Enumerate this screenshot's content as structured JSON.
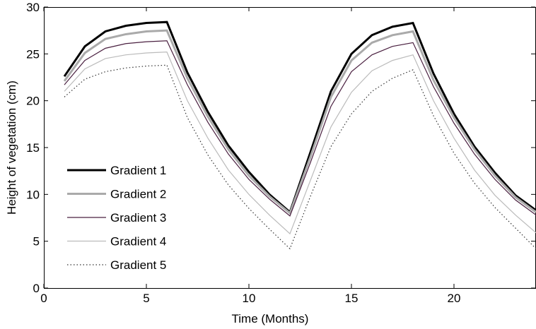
{
  "chart_data": {
    "type": "line",
    "xlabel": "Time (Months)",
    "ylabel": "Height of vegetation (cm)",
    "xlim": [
      0,
      24
    ],
    "ylim": [
      0,
      30
    ],
    "xticks": [
      0,
      5,
      10,
      15,
      20
    ],
    "yticks": [
      0,
      5,
      10,
      15,
      20,
      25,
      30
    ],
    "grid": false,
    "legend_position": "left",
    "x": [
      1,
      2,
      3,
      4,
      5,
      6,
      7,
      8,
      9,
      10,
      11,
      12,
      13,
      14,
      15,
      16,
      17,
      18,
      19,
      20,
      21,
      22,
      23,
      24
    ],
    "series": [
      {
        "name": "Gradient 1",
        "color": "#000000",
        "style": "thick-solid",
        "values": [
          22.6,
          25.8,
          27.4,
          28.0,
          28.3,
          28.4,
          23.0,
          18.8,
          15.2,
          12.4,
          10.0,
          8.1,
          14.5,
          21.0,
          25.0,
          27.0,
          27.9,
          28.3,
          22.9,
          18.6,
          15.1,
          12.3,
          9.9,
          8.3
        ]
      },
      {
        "name": "Gradient 2",
        "color": "#aaaaaa",
        "style": "thick-solid",
        "values": [
          22.1,
          25.1,
          26.6,
          27.1,
          27.4,
          27.5,
          22.4,
          18.3,
          14.8,
          12.0,
          9.8,
          8.0,
          14.0,
          20.4,
          24.3,
          26.2,
          27.0,
          27.4,
          22.2,
          18.2,
          14.8,
          12.0,
          9.7,
          8.1
        ]
      },
      {
        "name": "Gradient 3",
        "color": "#4a2040",
        "style": "solid",
        "values": [
          21.7,
          24.3,
          25.6,
          26.1,
          26.3,
          26.4,
          21.7,
          17.7,
          14.3,
          11.6,
          9.5,
          7.7,
          13.4,
          19.4,
          23.1,
          24.9,
          25.8,
          26.2,
          21.5,
          17.6,
          14.3,
          11.6,
          9.4,
          7.8
        ]
      },
      {
        "name": "Gradient 4",
        "color": "#bbbbbb",
        "style": "solid",
        "values": [
          21.0,
          23.4,
          24.5,
          24.9,
          25.1,
          25.2,
          20.0,
          16.0,
          12.6,
          10.0,
          7.8,
          5.8,
          11.5,
          17.2,
          20.9,
          23.2,
          24.3,
          24.9,
          20.0,
          16.0,
          12.6,
          9.9,
          7.8,
          5.9
        ]
      },
      {
        "name": "Gradient 5",
        "color": "#333333",
        "style": "dotted",
        "values": [
          20.4,
          22.3,
          23.1,
          23.5,
          23.7,
          23.8,
          18.2,
          14.2,
          11.0,
          8.5,
          6.3,
          4.2,
          9.8,
          15.1,
          18.6,
          21.0,
          22.4,
          23.3,
          18.4,
          14.4,
          11.2,
          8.6,
          6.4,
          4.2
        ]
      }
    ]
  }
}
